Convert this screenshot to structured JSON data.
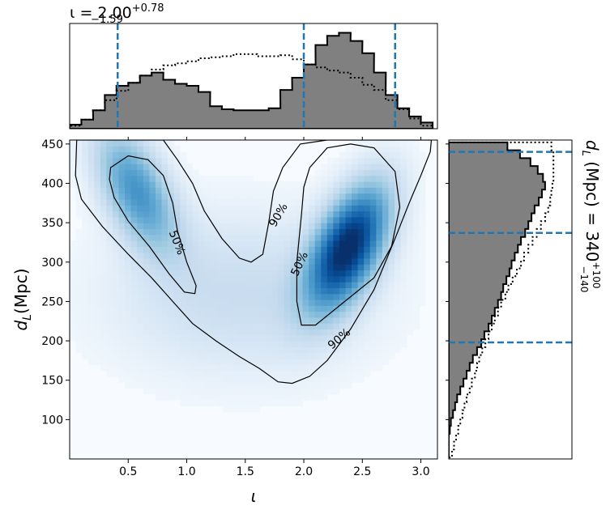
{
  "chart_data": [
    {
      "type": "heatmap",
      "title": "",
      "xlabel": "ι",
      "ylabel_main": "d",
      "ylabel_sub": "L",
      "ylabel_unit": "(Mpc)",
      "xlim": [
        0.0,
        3.1416
      ],
      "ylim": [
        50,
        455
      ],
      "xticks": [
        0.5,
        1.0,
        1.5,
        2.0,
        2.5,
        3.0
      ],
      "xtick_labels": [
        "0.5",
        "1.0",
        "1.5",
        "2.0",
        "2.5",
        "3.0"
      ],
      "yticks": [
        100,
        150,
        200,
        250,
        300,
        350,
        400,
        450
      ],
      "ytick_labels": [
        "100",
        "150",
        "200",
        "250",
        "300",
        "350",
        "400",
        "450"
      ],
      "colormap": "Blues",
      "density_peaks": [
        {
          "iota": 2.38,
          "dL": 320,
          "weight": 1.0
        },
        {
          "iota": 0.55,
          "dL": 395,
          "weight": 0.55
        }
      ],
      "contours": [
        {
          "level": "50%",
          "label": "50%"
        },
        {
          "level": "90%",
          "label": "90%"
        }
      ]
    },
    {
      "type": "area",
      "title_prefix": "ι = 2.00",
      "title_sup": "+0.78",
      "title_sub": "−1.59",
      "x": [
        0.05,
        0.15,
        0.25,
        0.35,
        0.45,
        0.55,
        0.65,
        0.75,
        0.85,
        0.95,
        1.05,
        1.15,
        1.25,
        1.35,
        1.45,
        1.55,
        1.65,
        1.75,
        1.85,
        1.95,
        2.05,
        2.15,
        2.25,
        2.35,
        2.45,
        2.55,
        2.65,
        2.75,
        2.85,
        2.95,
        3.05
      ],
      "posterior": [
        0.04,
        0.09,
        0.18,
        0.33,
        0.42,
        0.45,
        0.52,
        0.55,
        0.48,
        0.44,
        0.42,
        0.36,
        0.22,
        0.19,
        0.18,
        0.18,
        0.18,
        0.2,
        0.38,
        0.5,
        0.63,
        0.82,
        0.91,
        0.94,
        0.86,
        0.74,
        0.55,
        0.33,
        0.2,
        0.12,
        0.06
      ],
      "prior": [
        0.03,
        0.09,
        0.18,
        0.28,
        0.37,
        0.45,
        0.52,
        0.58,
        0.62,
        0.64,
        0.66,
        0.69,
        0.7,
        0.71,
        0.73,
        0.73,
        0.71,
        0.71,
        0.72,
        0.68,
        0.63,
        0.6,
        0.57,
        0.55,
        0.5,
        0.43,
        0.38,
        0.28,
        0.19,
        0.1,
        0.03
      ],
      "lines": [
        0.41,
        2.0,
        2.78
      ],
      "line_color": "#1f77b4",
      "hist_color": "#808080"
    },
    {
      "type": "area",
      "orientation": "horizontal",
      "label_main": "d",
      "label_sub": "L",
      "label_rest": " (Mpc) = 340",
      "label_sup": "+100",
      "label_sub2": "−140",
      "y": [
        57,
        67,
        77,
        87,
        97,
        107,
        117,
        127,
        137,
        147,
        157,
        167,
        177,
        187,
        197,
        207,
        217,
        227,
        237,
        247,
        257,
        267,
        277,
        287,
        297,
        307,
        317,
        327,
        337,
        347,
        357,
        367,
        377,
        387,
        397,
        407,
        417,
        427,
        437,
        447
      ],
      "posterior": [
        0.0,
        0.0,
        0.0,
        0.01,
        0.02,
        0.04,
        0.06,
        0.08,
        0.11,
        0.14,
        0.17,
        0.2,
        0.23,
        0.27,
        0.31,
        0.34,
        0.38,
        0.41,
        0.44,
        0.47,
        0.5,
        0.52,
        0.55,
        0.58,
        0.6,
        0.63,
        0.66,
        0.69,
        0.73,
        0.76,
        0.79,
        0.82,
        0.86,
        0.89,
        0.92,
        0.9,
        0.85,
        0.78,
        0.68,
        0.56
      ],
      "prior": [
        0.03,
        0.05,
        0.07,
        0.09,
        0.11,
        0.13,
        0.15,
        0.17,
        0.2,
        0.22,
        0.25,
        0.27,
        0.29,
        0.32,
        0.35,
        0.38,
        0.41,
        0.44,
        0.47,
        0.5,
        0.54,
        0.57,
        0.61,
        0.65,
        0.69,
        0.72,
        0.76,
        0.8,
        0.84,
        0.88,
        0.92,
        0.95,
        0.97,
        0.98,
        0.99,
        1.0,
        1.0,
        1.0,
        1.0,
        0.98
      ],
      "lines": [
        198,
        337,
        440
      ],
      "line_color": "#1f77b4",
      "hist_color": "#808080"
    }
  ]
}
